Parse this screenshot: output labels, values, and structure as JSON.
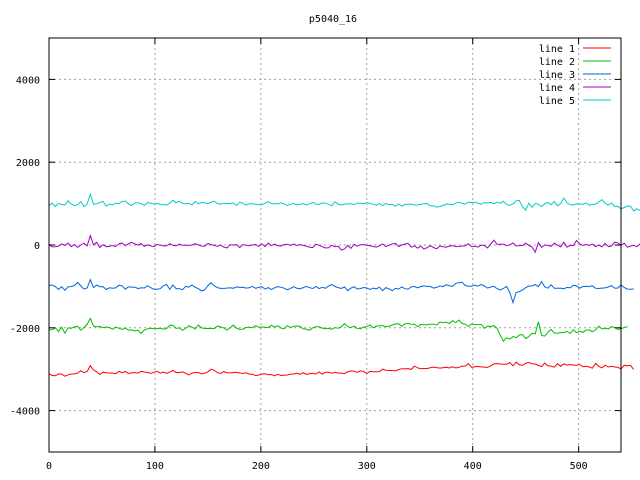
{
  "chart_data": {
    "type": "line",
    "title": "p5040_16",
    "xlabel": "",
    "ylabel": "",
    "xlim": [
      0,
      540
    ],
    "ylim": [
      -5000,
      5000
    ],
    "x_ticks": [
      0,
      100,
      200,
      300,
      400,
      500
    ],
    "y_ticks": [
      -4000,
      -2000,
      0,
      2000,
      4000
    ],
    "grid": true,
    "legend_position": "top-right",
    "x_step": 3,
    "series": [
      {
        "name": "line 1",
        "color": "#ff0000",
        "values": [
          -3109,
          -3152,
          -3157,
          -3113,
          -3120,
          -3168,
          -3135,
          -3119,
          -3113,
          -3097,
          -3036,
          -3081,
          -3059,
          -2915,
          -3016,
          -3063,
          -3128,
          -3072,
          -3090,
          -3092,
          -3095,
          -3109,
          -3050,
          -3084,
          -3052,
          -3104,
          -3089,
          -3081,
          -3094,
          -3050,
          -3068,
          -3079,
          -3101,
          -3076,
          -3050,
          -3095,
          -3073,
          -3101,
          -3071,
          -3032,
          -3082,
          -3081,
          -3066,
          -3096,
          -3138,
          -3093,
          -3082,
          -3080,
          -3113,
          -3093,
          -3062,
          -3000,
          -3029,
          -3081,
          -3104,
          -3059,
          -3085,
          -3089,
          -3083,
          -3074,
          -3093,
          -3101,
          -3087,
          -3116,
          -3122,
          -3151,
          -3143,
          -3117,
          -3108,
          -3133,
          -3127,
          -3160,
          -3122,
          -3153,
          -3145,
          -3141,
          -3121,
          -3116,
          -3096,
          -3123,
          -3084,
          -3122,
          -3110,
          -3096,
          -3117,
          -3062,
          -3118,
          -3075,
          -3075,
          -3096,
          -3075,
          -3094,
          -3093,
          -3103,
          -3065,
          -3040,
          -3049,
          -3076,
          -3042,
          -3052,
          -3105,
          -3053,
          -3062,
          -3063,
          -3059,
          -2998,
          -3023,
          -3029,
          -3035,
          -3041,
          -3010,
          -2988,
          -2993,
          -2985,
          -3006,
          -2926,
          -2965,
          -2987,
          -2983,
          -2982,
          -2967,
          -2950,
          -2962,
          -2973,
          -2963,
          -2954,
          -2970,
          -2942,
          -2972,
          -2953,
          -2930,
          -2923,
          -2868,
          -2953,
          -2940,
          -2934,
          -2944,
          -2950,
          -2957,
          -2920,
          -2871,
          -2865,
          -2875,
          -2876,
          -2881,
          -2839,
          -2918,
          -2828,
          -2893,
          -2908,
          -2856,
          -2838,
          -2867,
          -2875,
          -2911,
          -2935,
          -2853,
          -2917,
          -2925,
          -2951,
          -2867,
          -2930,
          -2870,
          -2900,
          -2888,
          -2898,
          -2905,
          -2887,
          -2939,
          -2929,
          -2947,
          -2975,
          -2861,
          -2929,
          -2968,
          -2903,
          -2946,
          -2929,
          -2948,
          -2952,
          -2997,
          -2903,
          -2915,
          -2908,
          -3006
        ]
      },
      {
        "name": "line 2",
        "color": "#00c000",
        "values": [
          -2045,
          -2044,
          -2001,
          -2092,
          -1985,
          -2128,
          -2002,
          -2012,
          -1978,
          -1964,
          -2059,
          -1992,
          -1919,
          -1772,
          -1960,
          -1975,
          -1968,
          -1994,
          -1980,
          -1995,
          -2035,
          -1983,
          -2013,
          -2041,
          -2004,
          -2056,
          -2051,
          -2076,
          -2059,
          -2137,
          -2052,
          -2023,
          -2012,
          -2023,
          -2022,
          -2011,
          -2032,
          -2017,
          -1937,
          -1941,
          -2014,
          -2003,
          -2060,
          -2017,
          -1949,
          -1983,
          -2030,
          -1933,
          -2003,
          -2018,
          -2017,
          -2015,
          -2019,
          -1960,
          -1979,
          -2004,
          -2052,
          -2002,
          -1935,
          -2007,
          -2039,
          -2035,
          -1992,
          -1984,
          -1998,
          -1948,
          -1989,
          -1981,
          -1985,
          -1992,
          -1940,
          -1986,
          -1950,
          -2006,
          -2025,
          -1947,
          -1993,
          -1964,
          -1956,
          -1966,
          -2027,
          -2032,
          -2061,
          -2000,
          -1977,
          -1976,
          -2008,
          -2023,
          -2014,
          -2034,
          -1996,
          -2010,
          -1974,
          -1899,
          -1970,
          -1994,
          -1960,
          -2016,
          -2021,
          -1982,
          -1977,
          -1930,
          -2001,
          -1958,
          -1952,
          -1947,
          -1972,
          -1961,
          -1932,
          -1909,
          -1901,
          -1966,
          -1905,
          -1894,
          -1915,
          -1913,
          -1976,
          -1921,
          -1925,
          -1926,
          -1915,
          -1912,
          -1932,
          -1861,
          -1875,
          -1864,
          -1897,
          -1826,
          -1871,
          -1812,
          -1896,
          -1911,
          -1965,
          -1905,
          -1920,
          -1927,
          -1917,
          -2013,
          -1962,
          -1970,
          -1948,
          -2011,
          -2182,
          -2322,
          -2240,
          -2273,
          -2212,
          -2236,
          -2179,
          -2162,
          -2260,
          -2213,
          -2132,
          -2148,
          -1857,
          -2182,
          -2200,
          -2110,
          -2041,
          -2124,
          -2134,
          -2115,
          -2117,
          -2087,
          -2136,
          -2047,
          -2118,
          -2082,
          -2112,
          -2052,
          -2052,
          -2094,
          -2050,
          -1961,
          -2029,
          -2013,
          -2029,
          -1970,
          -1993,
          -2040,
          -2025,
          -1992,
          -1971
        ]
      },
      {
        "name": "line 3",
        "color": "#0066dd",
        "values": [
          -975,
          -965,
          -1004,
          -1075,
          -1004,
          -1092,
          -1010,
          -1004,
          -979,
          -905,
          -989,
          -1065,
          -1038,
          -837,
          -1031,
          -966,
          -1007,
          -1004,
          -1076,
          -1035,
          -1045,
          -1037,
          -972,
          -986,
          -1068,
          -1010,
          -1022,
          -1016,
          -1052,
          -1035,
          -1038,
          -983,
          -1031,
          -1070,
          -1071,
          -1055,
          -984,
          -954,
          -1072,
          -968,
          -1054,
          -1054,
          -1080,
          -1001,
          -1017,
          -967,
          -1023,
          -1056,
          -1108,
          -1081,
          -981,
          -910,
          -986,
          -1032,
          -1049,
          -1049,
          -1040,
          -1033,
          -1046,
          -1011,
          -1023,
          -1021,
          -1042,
          -1034,
          -1000,
          -1045,
          -1023,
          -1008,
          -1066,
          -1030,
          -1077,
          -1034,
          -1004,
          -1022,
          -1044,
          -1082,
          -1049,
          -1008,
          -1046,
          -1060,
          -1029,
          -1000,
          -1031,
          -1050,
          -1003,
          -1053,
          -1021,
          -1047,
          -990,
          -954,
          -1003,
          -1029,
          -1051,
          -1011,
          -1105,
          -1041,
          -1010,
          -1060,
          -1054,
          -1026,
          -1038,
          -1072,
          -1040,
          -1057,
          -1019,
          -1103,
          -1030,
          -1059,
          -1101,
          -1049,
          -1063,
          -1013,
          -1055,
          -1065,
          -1011,
          -1003,
          -1033,
          -1003,
          -987,
          -1000,
          -1000,
          -1041,
          -1024,
          -989,
          -1008,
          -959,
          -989,
          -1001,
          -926,
          -912,
          -901,
          -979,
          -995,
          -998,
          -968,
          -992,
          -956,
          -990,
          -1040,
          -1014,
          -998,
          -1053,
          -1090,
          -1051,
          -1001,
          -1150,
          -1392,
          -1146,
          -1126,
          -1087,
          -1031,
          -990,
          -991,
          -955,
          -1007,
          -881,
          -1010,
          -1043,
          -961,
          -1043,
          -1044,
          -1040,
          -1057,
          -1025,
          -1037,
          -973,
          -989,
          -1044,
          -1002,
          -994,
          -1002,
          -985,
          -1046,
          -1051,
          -1041,
          -1036,
          -1014,
          -980,
          -1042,
          -1041,
          -962,
          -1027,
          -1066,
          -1067,
          -1064
        ]
      },
      {
        "name": "line 4",
        "color": "#a000c0",
        "values": [
          12,
          -47,
          -41,
          -27,
          25,
          -12,
          46,
          -40,
          12,
          -55,
          0,
          47,
          -23,
          226,
          4,
          66,
          -64,
          10,
          -42,
          -34,
          -12,
          -38,
          29,
          45,
          -15,
          30,
          62,
          30,
          -2,
          36,
          -34,
          6,
          -21,
          -38,
          13,
          -3,
          -21,
          -22,
          31,
          -8,
          -21,
          21,
          -7,
          -2,
          -9,
          0,
          29,
          3,
          -24,
          -30,
          37,
          9,
          -9,
          -35,
          0,
          -52,
          -71,
          5,
          -2,
          13,
          -66,
          10,
          -3,
          -16,
          3,
          12,
          -33,
          27,
          -39,
          49,
          -17,
          21,
          -17,
          -23,
          11,
          19,
          -11,
          21,
          -11,
          11,
          -10,
          -26,
          -52,
          -60,
          19,
          -8,
          -41,
          -72,
          -68,
          -9,
          -42,
          -32,
          -120,
          -97,
          -9,
          -83,
          17,
          -30,
          8,
          9,
          -8,
          -20,
          -36,
          -51,
          -19,
          24,
          -38,
          -5,
          23,
          40,
          -36,
          -1,
          21,
          41,
          -53,
          -22,
          -78,
          -30,
          -102,
          -63,
          -18,
          -60,
          -92,
          -24,
          -41,
          -54,
          -23,
          -17,
          -39,
          -36,
          -25,
          -19,
          27,
          -40,
          -28,
          -51,
          -2,
          -12,
          -71,
          22,
          115,
          17,
          15,
          22,
          -15,
          5,
          51,
          -24,
          -15,
          -12,
          47,
          -10,
          -47,
          -173,
          58,
          -58,
          -1,
          -9,
          -31,
          45,
          -2,
          -44,
          65,
          -52,
          -8,
          -11,
          111,
          26,
          -13,
          18,
          -11,
          22,
          -42,
          -3,
          -46,
          41,
          -37,
          -26,
          68,
          53,
          -13,
          44,
          -53,
          -26,
          -10,
          -40,
          29
        ]
      },
      {
        "name": "line 5",
        "color": "#00cccc",
        "values": [
          958,
          1007,
          928,
          1006,
          976,
          967,
          1070,
          987,
          952,
          970,
          1050,
          930,
          988,
          1229,
          984,
          997,
          1025,
          1053,
          941,
          988,
          965,
          1008,
          1002,
          1048,
          1064,
          992,
          954,
          1015,
          1022,
          998,
          958,
          1027,
          1009,
          989,
          1003,
          981,
          977,
          967,
          1009,
          1081,
          1017,
          1058,
          1004,
          992,
          1004,
          965,
          1054,
          994,
          1024,
          1019,
          997,
          1029,
          1058,
          1004,
          986,
          1009,
          1003,
          1005,
          1018,
          953,
          1031,
          1007,
          963,
          996,
          994,
          986,
          974,
          971,
          1010,
          1048,
          996,
          998,
          994,
          1017,
          994,
          953,
          985,
          1003,
          967,
          980,
          999,
          965,
          997,
          1030,
          991,
          978,
          1017,
          1009,
          983,
          942,
          1045,
          982,
          967,
          988,
          993,
          994,
          976,
          1013,
          1012,
          999,
          1024,
          1008,
          985,
          962,
          1001,
          949,
          1006,
          973,
          981,
          937,
          990,
          934,
          981,
          987,
          988,
          966,
          969,
          985,
          998,
          1002,
          941,
          948,
          915,
          931,
          953,
          991,
          983,
          968,
          1010,
          1031,
          1008,
          985,
          1039,
          1024,
          1033,
          1013,
          982,
          1027,
          1016,
          1030,
          994,
          1038,
          1005,
          1055,
          976,
          960,
          993,
          1068,
          1078,
          919,
          843,
          1009,
          910,
          1003,
          986,
          928,
          1001,
          1027,
          974,
          1054,
          947,
          1000,
          1136,
          1025,
          970,
          967,
          992,
          990,
          978,
          1018,
          961,
          976,
          990,
          1042,
          1093,
          1010,
          962,
          1018,
          931,
          935,
          871,
          906,
          942,
          940,
          822,
          874,
          833,
          826
        ]
      }
    ]
  }
}
